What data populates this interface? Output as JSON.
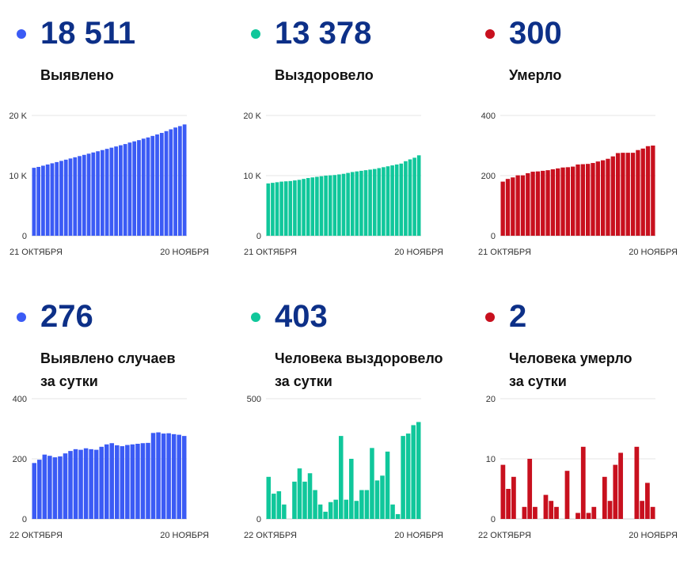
{
  "panels": [
    {
      "value": "18 511",
      "label_lines": [
        "Выявлено"
      ],
      "color": "#3b5bf5",
      "chart_data": {
        "type": "bar",
        "x_start": "21 ОКТЯБРЯ",
        "x_end": "20 НОЯБРЯ",
        "ylim": [
          0,
          20000
        ],
        "yticks": [
          {
            "value": 0,
            "label": "0"
          },
          {
            "value": 10000,
            "label": "10 K"
          },
          {
            "value": 20000,
            "label": "20 K"
          }
        ],
        "values": [
          11300,
          11450,
          11650,
          11850,
          12050,
          12250,
          12450,
          12650,
          12850,
          13050,
          13250,
          13450,
          13650,
          13850,
          14050,
          14250,
          14450,
          14650,
          14850,
          15050,
          15250,
          15500,
          15700,
          15900,
          16150,
          16350,
          16600,
          16850,
          17100,
          17400,
          17700,
          18000,
          18235,
          18511
        ]
      }
    },
    {
      "value": "13 378",
      "label_lines": [
        "Выздоровело"
      ],
      "color": "#10c79b",
      "chart_data": {
        "type": "bar",
        "x_start": "21 ОКТЯБРЯ",
        "x_end": "20 НОЯБРЯ",
        "ylim": [
          0,
          20000
        ],
        "yticks": [
          {
            "value": 0,
            "label": "0"
          },
          {
            "value": 10000,
            "label": "10 K"
          },
          {
            "value": 20000,
            "label": "20 K"
          }
        ],
        "values": [
          8700,
          8800,
          8900,
          9000,
          9050,
          9100,
          9200,
          9300,
          9450,
          9600,
          9700,
          9800,
          9900,
          10000,
          10050,
          10100,
          10200,
          10300,
          10450,
          10600,
          10700,
          10800,
          10900,
          11000,
          11100,
          11250,
          11400,
          11550,
          11700,
          11850,
          12000,
          12400,
          12700,
          12975,
          13378
        ]
      }
    },
    {
      "value": "300",
      "label_lines": [
        "Умерло"
      ],
      "color": "#c8101e",
      "chart_data": {
        "type": "bar",
        "x_start": "21 ОКТЯБРЯ",
        "x_end": "20 НОЯБРЯ",
        "ylim": [
          0,
          400
        ],
        "yticks": [
          {
            "value": 0,
            "label": "0"
          },
          {
            "value": 200,
            "label": "200"
          },
          {
            "value": 400,
            "label": "400"
          }
        ],
        "values": [
          180,
          189,
          194,
          201,
          201,
          208,
          213,
          214,
          216,
          218,
          221,
          224,
          227,
          228,
          230,
          237,
          238,
          239,
          242,
          247,
          251,
          256,
          264,
          275,
          276,
          276,
          276,
          285,
          290,
          298,
          300
        ]
      }
    },
    {
      "value": "276",
      "label_lines": [
        "Выявлено случаев",
        "за сутки"
      ],
      "color": "#3b5bf5",
      "chart_data": {
        "type": "bar",
        "x_start": "22 ОКТЯБРЯ",
        "x_end": "20 НОЯБРЯ",
        "ylim": [
          0,
          400
        ],
        "yticks": [
          {
            "value": 0,
            "label": "0"
          },
          {
            "value": 200,
            "label": "200"
          },
          {
            "value": 400,
            "label": "400"
          }
        ],
        "values": [
          186,
          197,
          214,
          210,
          205,
          208,
          218,
          226,
          232,
          230,
          235,
          232,
          230,
          240,
          248,
          252,
          245,
          242,
          246,
          248,
          250,
          252,
          253,
          286,
          288,
          284,
          285,
          282,
          280,
          276
        ]
      }
    },
    {
      "value": "403",
      "label_lines": [
        "Человека выздоровело",
        "за сутки"
      ],
      "color": "#10c79b",
      "chart_data": {
        "type": "bar",
        "x_start": "22 ОКТЯБРЯ",
        "x_end": "20 НОЯБРЯ",
        "ylim": [
          0,
          500
        ],
        "yticks": [
          {
            "value": 0,
            "label": "0"
          },
          {
            "value": 500,
            "label": "500"
          }
        ],
        "values": [
          175,
          105,
          115,
          60,
          0,
          155,
          210,
          155,
          190,
          120,
          60,
          30,
          70,
          80,
          345,
          80,
          250,
          75,
          120,
          120,
          295,
          160,
          180,
          280,
          60,
          20,
          345,
          355,
          390,
          403
        ]
      }
    },
    {
      "value": "2",
      "label_lines": [
        "Человека умерло",
        "за сутки"
      ],
      "color": "#c8101e",
      "chart_data": {
        "type": "bar",
        "x_start": "22 ОКТЯБРЯ",
        "x_end": "20 НОЯБРЯ",
        "ylim": [
          0,
          20
        ],
        "yticks": [
          {
            "value": 0,
            "label": "0"
          },
          {
            "value": 10,
            "label": "10"
          },
          {
            "value": 20,
            "label": "20"
          }
        ],
        "values": [
          9,
          5,
          7,
          0,
          2,
          10,
          2,
          0,
          4,
          3,
          2,
          0,
          8,
          0,
          1,
          12,
          1,
          2,
          0,
          7,
          3,
          9,
          11,
          0,
          0,
          12,
          3,
          6,
          2
        ]
      }
    }
  ]
}
